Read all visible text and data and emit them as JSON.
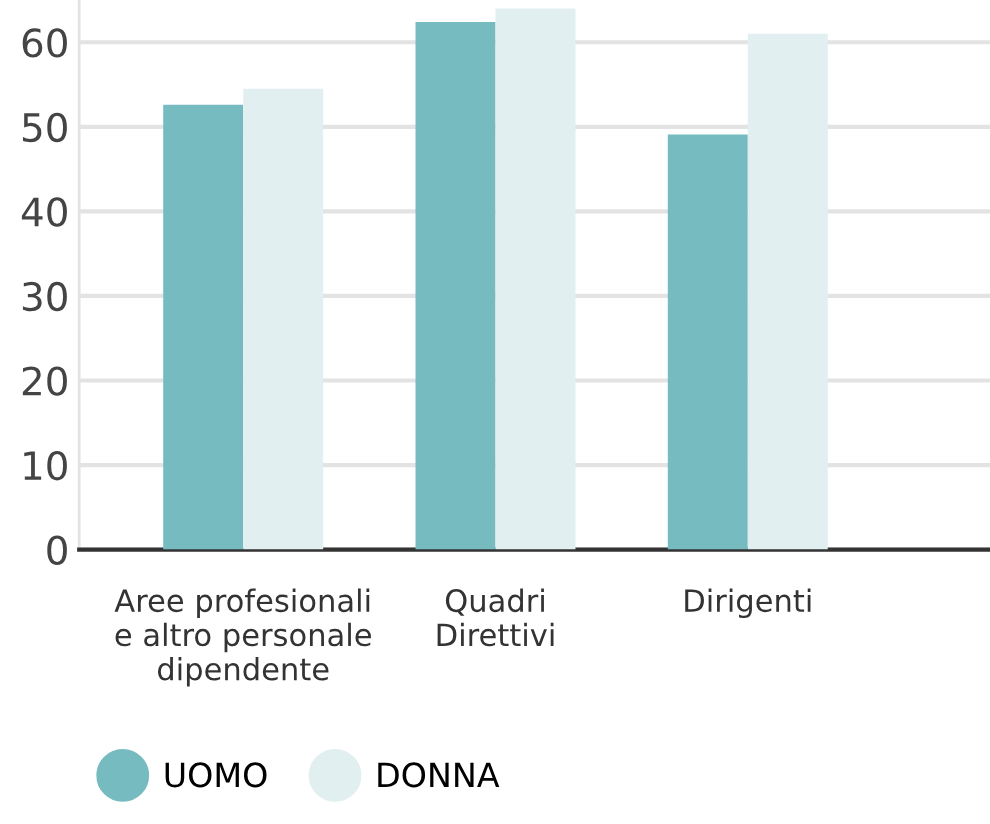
{
  "chart_data": {
    "type": "bar",
    "categories": [
      "Aree profesionali\ne altro personale\ndipendente",
      "Quadri\nDirettivi",
      "Dirigenti"
    ],
    "series": [
      {
        "name": "UOMO",
        "color": "#76bbbf",
        "values": [
          52.6,
          62.4,
          49.1
        ]
      },
      {
        "name": "DONNA",
        "color": "#e1eff0",
        "values": [
          54.5,
          64.0,
          61.0
        ]
      }
    ],
    "ylim": [
      0,
      65
    ],
    "yticks": [
      0,
      10,
      20,
      30,
      40,
      50,
      60
    ],
    "grid": "y",
    "legend": "bottom left"
  }
}
